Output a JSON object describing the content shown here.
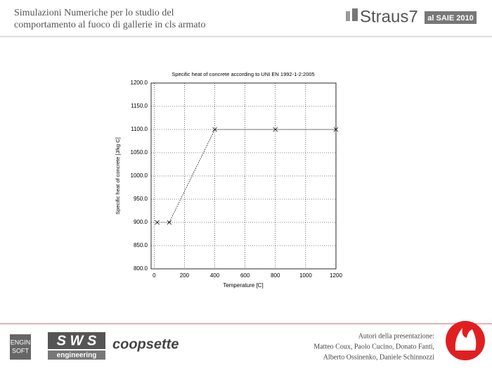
{
  "header": {
    "title_lines": [
      "Simulazioni Numeriche per lo studio del",
      "comportamento al fuoco di gallerie in cls armato"
    ],
    "logo": "Straus7",
    "event": "al SAIE 2010"
  },
  "footer": {
    "logos": [
      "ENGIN",
      "SOFT",
      "S W S",
      "engineering",
      "coopsette"
    ],
    "authors": [
      "Autori della presentazione:",
      "Matteo Coux, Paolo Cucino, Donato Fanti,",
      "Alberto Ossinenko, Daniele Schinnozzi"
    ]
  },
  "chart_data": {
    "type": "line",
    "title": "Specific heat of concrete according to UNI EN 1992-1-2:2005",
    "x_label": "Temperature [C]",
    "y_label": "Specific heat of concrete [J/kg C]",
    "x": [
      20,
      100,
      400,
      800,
      1200
    ],
    "values": [
      900,
      900,
      1100,
      1100,
      1100
    ],
    "color": "#000000",
    "marker": "x",
    "line_style": "dotted",
    "grid": true,
    "xlim": [
      -20,
      1200
    ],
    "xticks": [
      0,
      200,
      400,
      600,
      800,
      1000,
      1200
    ],
    "ylim": [
      800,
      1200
    ],
    "yticks": [
      {
        "value": 800,
        "label": "800.0"
      },
      {
        "value": 850,
        "label": "850.0"
      },
      {
        "value": 900,
        "label": "900.0"
      },
      {
        "value": 950,
        "label": "950.0"
      },
      {
        "value": 1000,
        "label": "1000.0"
      },
      {
        "value": 1050,
        "label": "1050.0"
      },
      {
        "value": 1100,
        "label": "1100.0"
      },
      {
        "value": 1150,
        "label": "1150.0"
      },
      {
        "value": 1200,
        "label": "1200.0"
      }
    ]
  }
}
